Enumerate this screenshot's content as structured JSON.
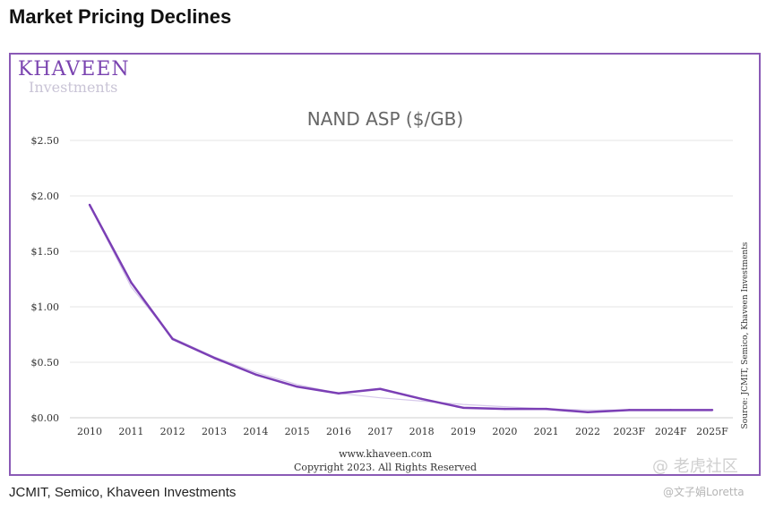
{
  "heading": "Market Pricing Declines",
  "logo": {
    "name": "KHAVEEN",
    "sub": "Investments"
  },
  "caption": "JCMIT, Semico, Khaveen Investments",
  "watermark": {
    "brand": "@ 老虎社区",
    "user": "@文子娟Loretta"
  },
  "colors": {
    "line": "#7b3fb5",
    "frame": "#8a5ab6",
    "trend": "#d6c8ea"
  },
  "chart_data": {
    "type": "line",
    "title": "NAND ASP ($/GB)",
    "categories": [
      "2010",
      "2011",
      "2012",
      "2013",
      "2014",
      "2015",
      "2016",
      "2017",
      "2018",
      "2019",
      "2020",
      "2021",
      "2022",
      "2023F",
      "2024F",
      "2025F"
    ],
    "series": [
      {
        "values": [
          1.92,
          1.22,
          0.71,
          0.54,
          0.39,
          0.28,
          0.22,
          0.26,
          0.17,
          0.09,
          0.08,
          0.08,
          0.05,
          0.07,
          0.07,
          0.07
        ]
      }
    ],
    "trend": [
      1.92,
      1.18,
      0.72,
      0.55,
      0.41,
      0.3,
      0.22,
      0.18,
      0.15,
      0.12,
      0.1,
      0.08,
      0.07,
      0.07,
      0.07,
      0.07
    ],
    "ylim": [
      0,
      2.5
    ],
    "yticks": [
      "$0.00",
      "$0.50",
      "$1.00",
      "$1.50",
      "$2.00",
      "$2.50"
    ],
    "grid": true,
    "source": "Source: JCMIT, Semico, Khaveen Investments",
    "footer": [
      "www.khaveen.com",
      "Copyright 2023. All Rights Reserved"
    ]
  }
}
